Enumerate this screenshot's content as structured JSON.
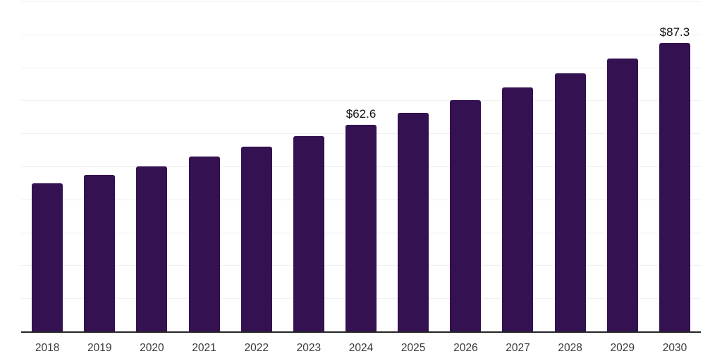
{
  "chart_data": {
    "type": "bar",
    "categories": [
      "2018",
      "2019",
      "2020",
      "2021",
      "2022",
      "2023",
      "2024",
      "2025",
      "2026",
      "2027",
      "2028",
      "2029",
      "2030"
    ],
    "values": [
      44.9,
      47.4,
      50.1,
      53.0,
      56.0,
      59.2,
      62.6,
      66.2,
      70.0,
      74.0,
      78.2,
      82.6,
      87.3
    ],
    "data_labels": [
      "",
      "",
      "",
      "",
      "",
      "",
      "$62.6",
      "",
      "",
      "",
      "",
      "",
      "$87.3"
    ],
    "xlabel": "",
    "ylabel": "",
    "ylim": [
      0,
      100
    ],
    "gridline_step": 10,
    "grid": true,
    "y_tick_labels_visible": false,
    "legend": "none",
    "colors": {
      "bar": "#341151",
      "axis_line": "#262626",
      "gridline": "#f1eff0",
      "tick_label": "#3a3a3a",
      "data_label": "#111111",
      "background": "#ffffff"
    }
  }
}
